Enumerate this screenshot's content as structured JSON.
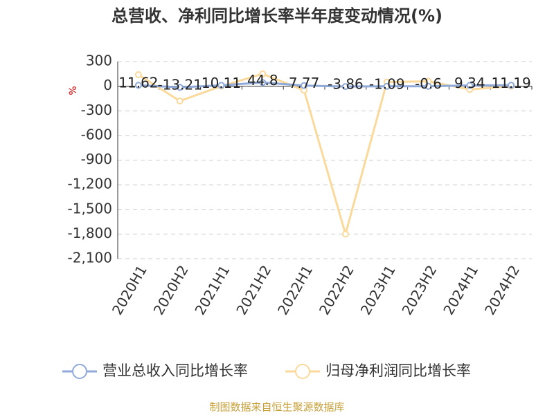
{
  "chart_data": {
    "type": "line",
    "title": "总营收、净利同比增长率半年度变动情况(%)",
    "y_label": "%",
    "categories": [
      "2020H1",
      "2020H2",
      "2021H1",
      "2021H2",
      "2022H1",
      "2022H2",
      "2023H1",
      "2023H2",
      "2024H1",
      "2024H2"
    ],
    "series": [
      {
        "name": "营业总收入同比增长率",
        "color": "#8fa9d8",
        "values": [
          11.62,
          -13.21,
          10.11,
          44.8,
          7.77,
          -3.86,
          -1.09,
          -0.6,
          9.34,
          11.19
        ],
        "show_labels": true
      },
      {
        "name": "归母净利润同比增长率",
        "color": "#fad99b",
        "values": [
          140,
          -180,
          0,
          150,
          -50,
          -1800,
          50,
          60,
          -40,
          0
        ],
        "show_labels": false
      }
    ],
    "ylim": [
      -2100,
      300
    ],
    "yticks": [
      300,
      0,
      -300,
      -600,
      -900,
      {
        "value": -1200,
        "label": "-1,200"
      },
      {
        "value": -1500,
        "label": "-1,500"
      },
      {
        "value": -1800,
        "label": "-1,800"
      },
      {
        "value": -2100,
        "label": "-2,100"
      }
    ],
    "grid": true,
    "source": "制图数据来自恒生聚源数据库"
  }
}
